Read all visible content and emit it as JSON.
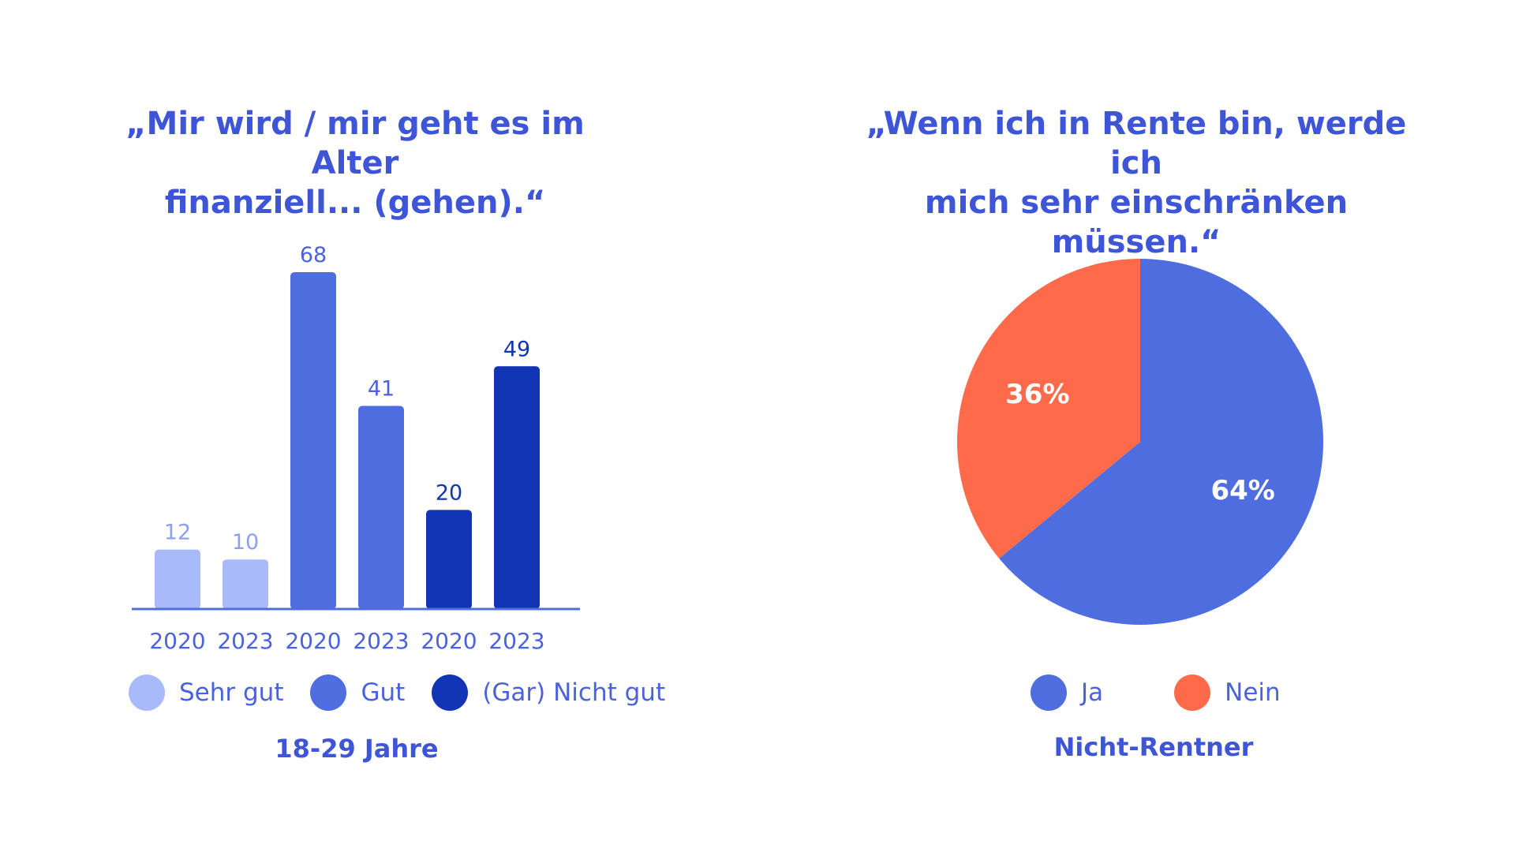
{
  "chart_data": [
    {
      "type": "bar",
      "title": "„Mir wird / mir geht es im Alter finanziell... (gehen).“",
      "title_lines": [
        "„Mir wird / mir geht es im Alter",
        "finanziell... (gehen).“"
      ],
      "subtitle": "18-29 Jahre",
      "categories": [
        "2020",
        "2023",
        "2020",
        "2023",
        "2020",
        "2023"
      ],
      "values": [
        12,
        10,
        68,
        41,
        20,
        49
      ],
      "bar_series": [
        "Sehr gut",
        "Sehr gut",
        "Gut",
        "Gut",
        "(Gar) Nicht gut",
        "(Gar) Nicht gut"
      ],
      "series": [
        {
          "name": "Sehr gut",
          "color": "#a8bafa",
          "label_color": "#8d9ff0"
        },
        {
          "name": "Gut",
          "color": "#4e6ddf",
          "label_color": "#4a62dd"
        },
        {
          "name": "(Gar) Nicht gut",
          "color": "#1235b6",
          "label_color": "#1235b6"
        }
      ],
      "ylim": [
        0,
        68
      ],
      "legend_position": "bottom",
      "grid": false
    },
    {
      "type": "pie",
      "title": "„Wenn ich in Rente bin, werde ich mich sehr einschränken müssen.“",
      "title_lines": [
        "„Wenn ich in Rente bin, werde ich",
        "mich sehr einschränken müssen.“"
      ],
      "subtitle": "Nicht-Rentner",
      "slices": [
        {
          "name": "Ja",
          "value": 64,
          "label": "64%",
          "color": "#4e6ddf"
        },
        {
          "name": "Nein",
          "value": 36,
          "label": "36%",
          "color": "#ff6b4a"
        }
      ],
      "legend_position": "bottom"
    }
  ],
  "colors": {
    "title": "#3d55d6",
    "axis": "#4e6ddf",
    "tick_label": "#4a62dd",
    "pie_label": "#ffffff"
  }
}
